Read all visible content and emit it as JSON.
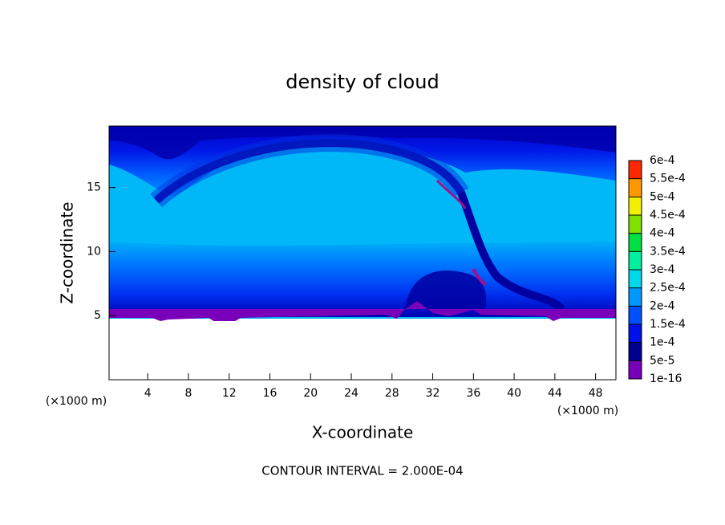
{
  "chart_data": {
    "type": "contour",
    "title": "density of cloud",
    "x_label": "X-coordinate",
    "y_label": "Z-coordinate",
    "x_unit_label": "(×1000 m)",
    "y_unit_label": "(×1000 m)",
    "footer": "CONTOUR INTERVAL = 2.000E-04",
    "xlim": [
      0.2,
      50
    ],
    "ylim": [
      0,
      19.8
    ],
    "xticks": [
      4,
      8,
      12,
      16,
      20,
      24,
      28,
      32,
      36,
      40,
      44,
      48
    ],
    "yticks": [
      5,
      10,
      15
    ],
    "colorbar": {
      "levels": [
        {
          "value": 1e-16,
          "label": "1e-16"
        },
        {
          "value": 5e-05,
          "label": "5e-5"
        },
        {
          "value": 0.0001,
          "label": "1e-4"
        },
        {
          "value": 0.00015,
          "label": "1.5e-4"
        },
        {
          "value": 0.0002,
          "label": "2e-4"
        },
        {
          "value": 0.00025,
          "label": "2.5e-4"
        },
        {
          "value": 0.0003,
          "label": "3e-4"
        },
        {
          "value": 0.00035,
          "label": "3.5e-4"
        },
        {
          "value": 0.0004,
          "label": "4e-4"
        },
        {
          "value": 0.00045,
          "label": "4.5e-4"
        },
        {
          "value": 0.0005,
          "label": "5e-4"
        },
        {
          "value": 0.00055,
          "label": "5.5e-4"
        },
        {
          "value": 0.0006,
          "label": "6e-4"
        }
      ],
      "colors": [
        "#7800b8",
        "#00008c",
        "#0010e8",
        "#0050ff",
        "#0098ff",
        "#00d8e8",
        "#00f0a0",
        "#00e040",
        "#80e000",
        "#f0f000",
        "#ff9800",
        "#ff2800"
      ]
    }
  }
}
